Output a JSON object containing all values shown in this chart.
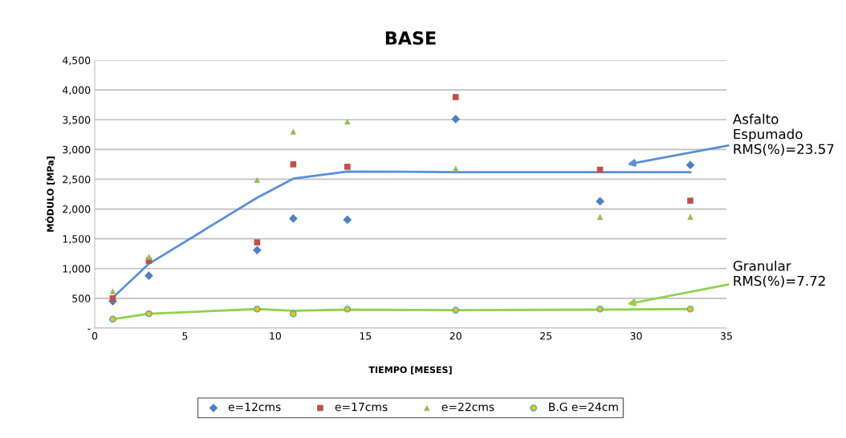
{
  "chart_data": {
    "type": "scatter",
    "title": "BASE",
    "xlabel": "TIEMPO [MESES]",
    "ylabel": "MÓDULO [MPa]",
    "x": [
      1,
      3,
      9,
      11,
      14,
      20,
      28,
      33
    ],
    "series": [
      {
        "name": "e=12cms",
        "color": "#4f81bd",
        "marker": "diamond",
        "values": [
          450,
          880,
          1310,
          1840,
          1820,
          3510,
          2130,
          2740
        ]
      },
      {
        "name": "e=17cms",
        "color": "#c0504d",
        "marker": "square",
        "values": [
          500,
          1130,
          1440,
          2750,
          2710,
          3880,
          2660,
          2140
        ]
      },
      {
        "name": "e=22cms",
        "color": "#9bbb59",
        "marker": "triangle",
        "values": [
          620,
          1200,
          2490,
          3300,
          3470,
          2680,
          1870,
          1870
        ]
      },
      {
        "name": "B.G e=24cm",
        "color": "#ffc000",
        "marker": "circle",
        "values": [
          150,
          240,
          320,
          240,
          320,
          300,
          320,
          320
        ]
      },
      {
        "type": "line",
        "color": "#5b8fd6",
        "marker": "none",
        "x": [
          1,
          3,
          9,
          11,
          14,
          20,
          28,
          33
        ],
        "values": [
          510,
          1080,
          2190,
          2510,
          2630,
          2620,
          2620,
          2620
        ]
      },
      {
        "type": "line",
        "color": "#92d050",
        "marker": "none",
        "x": [
          1,
          3,
          9,
          11,
          14,
          20,
          28,
          33
        ],
        "values": [
          150,
          240,
          320,
          290,
          310,
          300,
          310,
          320
        ]
      }
    ],
    "xlim": [
      0,
      35
    ],
    "xticks": [
      0,
      5,
      10,
      15,
      20,
      25,
      30,
      35
    ],
    "ylim": [
      0,
      4500
    ],
    "yticks": [
      {
        "value": 0,
        "label": "-"
      },
      {
        "value": 500,
        "label": "500"
      },
      {
        "value": 1000,
        "label": "1,000"
      },
      {
        "value": 1500,
        "label": "1,500"
      },
      {
        "value": 2000,
        "label": "2,000"
      },
      {
        "value": 2500,
        "label": "2,500"
      },
      {
        "value": 3000,
        "label": "3,000"
      },
      {
        "value": 3500,
        "label": "3,500"
      },
      {
        "value": 4000,
        "label": "4,000"
      },
      {
        "value": 4500,
        "label": "4,500"
      }
    ],
    "grid": "y",
    "legend": "bottom",
    "annotations": [
      "Asfalto\nEspumado\nRMS(%)=23.57",
      "Granular\nRMS(%)=7.72"
    ]
  }
}
